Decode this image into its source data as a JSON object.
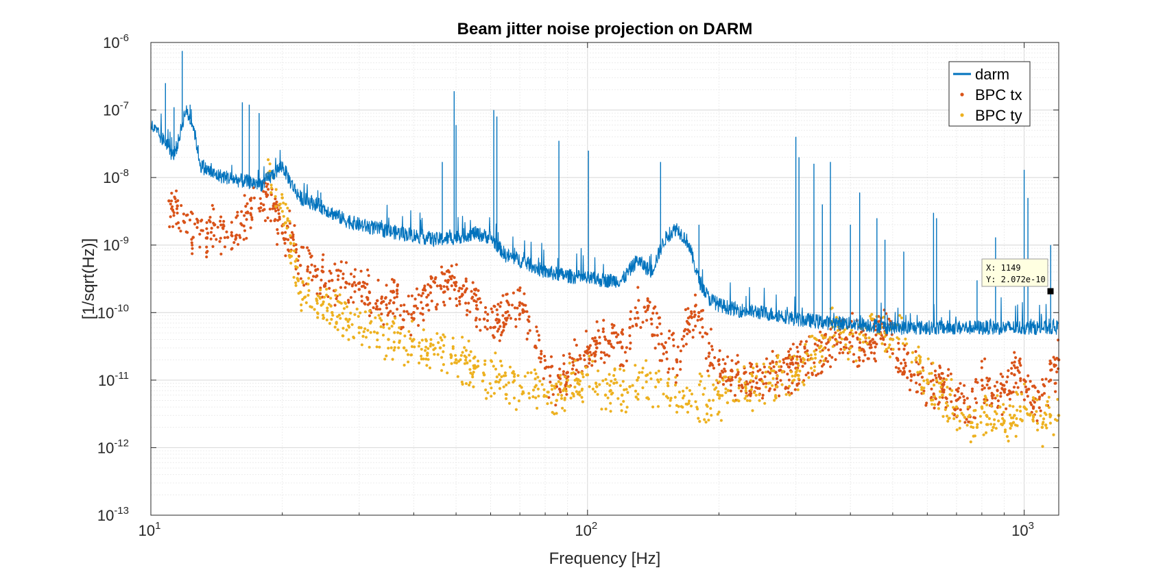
{
  "chart_data": {
    "type": "scatter",
    "title": "Beam jitter noise projection on DARM",
    "xlabel": "Frequency [Hz]",
    "ylabel": "[1/sqrt(Hz)]",
    "xscale": "log",
    "yscale": "log",
    "xlim": [
      10,
      1200
    ],
    "ylim": [
      1e-13,
      1e-06
    ],
    "grid": "on",
    "legend_position": "top-right",
    "x_ticks": [
      {
        "value": 10,
        "mantissa": "10",
        "exp": "1"
      },
      {
        "value": 100,
        "mantissa": "10",
        "exp": "2"
      },
      {
        "value": 1000,
        "mantissa": "10",
        "exp": "3"
      }
    ],
    "y_ticks": [
      {
        "value": 1e-13,
        "mantissa": "10",
        "exp": "-13"
      },
      {
        "value": 1e-12,
        "mantissa": "10",
        "exp": "-12"
      },
      {
        "value": 1e-11,
        "mantissa": "10",
        "exp": "-11"
      },
      {
        "value": 1e-10,
        "mantissa": "10",
        "exp": "-10"
      },
      {
        "value": 1e-09,
        "mantissa": "10",
        "exp": "-9"
      },
      {
        "value": 1e-08,
        "mantissa": "10",
        "exp": "-8"
      },
      {
        "value": 1e-07,
        "mantissa": "10",
        "exp": "-7"
      },
      {
        "value": 1e-06,
        "mantissa": "10",
        "exp": "-6"
      }
    ],
    "series": [
      {
        "name": "darm",
        "style": "line",
        "color": "#0072BD",
        "x": [
          10,
          10.5,
          11,
          11.2,
          11.5,
          12,
          12.5,
          13,
          14,
          15,
          16,
          18,
          20,
          21,
          22,
          24,
          26,
          28,
          30,
          35,
          40,
          45,
          50,
          55,
          60,
          65,
          70,
          80,
          90,
          100,
          110,
          120,
          130,
          140,
          150,
          155,
          160,
          170,
          180,
          190,
          200,
          220,
          250,
          280,
          300,
          330,
          360,
          400,
          450,
          500,
          600,
          700,
          800,
          900,
          1000,
          1100,
          1200
        ],
        "y": [
          6e-08,
          4e-08,
          3e-08,
          2e-08,
          3e-08,
          1e-07,
          6e-08,
          1.5e-08,
          1.1e-08,
          1e-08,
          9e-09,
          8e-09,
          1.5e-08,
          8e-09,
          5e-09,
          4e-09,
          3e-09,
          2.3e-09,
          2e-09,
          1.6e-09,
          1.4e-09,
          1.2e-09,
          1.3e-09,
          1.5e-09,
          1.3e-09,
          7e-10,
          6e-10,
          4e-10,
          3.5e-10,
          3.2e-10,
          3e-10,
          3e-10,
          6e-10,
          4e-10,
          1.2e-09,
          1.5e-09,
          1.8e-09,
          1.1e-09,
          3e-10,
          1.6e-10,
          1.3e-10,
          1.1e-10,
          1e-10,
          9e-11,
          8e-11,
          7.5e-11,
          7e-11,
          7e-11,
          6.5e-11,
          6e-11,
          6e-11,
          6e-11,
          6e-11,
          6e-11,
          6e-11,
          6e-11,
          6e-11
        ],
        "peaks": [
          {
            "x": 10.8,
            "y": 2.5e-07
          },
          {
            "x": 11.3,
            "y": 1.1e-07
          },
          {
            "x": 11.8,
            "y": 7.5e-07
          },
          {
            "x": 12.3,
            "y": 1.2e-07
          },
          {
            "x": 16.2,
            "y": 1.3e-07
          },
          {
            "x": 16.8,
            "y": 1.2e-07
          },
          {
            "x": 17.7,
            "y": 9e-08
          },
          {
            "x": 19.8,
            "y": 1.8e-08
          },
          {
            "x": 24.5,
            "y": 6e-09
          },
          {
            "x": 46.5,
            "y": 1.7e-08
          },
          {
            "x": 49.5,
            "y": 1.9e-07
          },
          {
            "x": 50,
            "y": 6e-08
          },
          {
            "x": 61,
            "y": 1e-07
          },
          {
            "x": 62,
            "y": 8e-08
          },
          {
            "x": 86,
            "y": 3.5e-08
          },
          {
            "x": 100.5,
            "y": 2.5e-08
          },
          {
            "x": 147,
            "y": 1.7e-08
          },
          {
            "x": 180,
            "y": 2e-09
          },
          {
            "x": 300,
            "y": 4e-08
          },
          {
            "x": 305,
            "y": 2e-08
          },
          {
            "x": 330,
            "y": 1.6e-08
          },
          {
            "x": 345,
            "y": 4e-09
          },
          {
            "x": 360,
            "y": 1.7e-08
          },
          {
            "x": 400,
            "y": 2e-09
          },
          {
            "x": 420,
            "y": 6e-09
          },
          {
            "x": 460,
            "y": 2.5e-09
          },
          {
            "x": 480,
            "y": 1.2e-09
          },
          {
            "x": 530,
            "y": 8e-10
          },
          {
            "x": 620,
            "y": 3e-09
          },
          {
            "x": 630,
            "y": 2.5e-09
          },
          {
            "x": 780,
            "y": 3e-10
          },
          {
            "x": 860,
            "y": 1.3e-09
          },
          {
            "x": 1000,
            "y": 1.3e-08
          },
          {
            "x": 1020,
            "y": 5e-09
          },
          {
            "x": 1150,
            "y": 1e-09
          }
        ]
      },
      {
        "name": "BPC tx",
        "style": "markers",
        "color": "#D95319",
        "x": [
          11,
          11.5,
          12.5,
          13.5,
          14,
          15,
          17,
          18.5,
          20,
          21,
          22,
          24,
          26,
          28,
          30,
          33,
          36,
          40,
          43,
          46,
          48,
          50,
          52,
          55,
          58,
          60,
          65,
          70,
          80,
          85,
          90,
          95,
          100,
          105,
          110,
          115,
          120,
          125,
          130,
          135,
          140,
          150,
          160,
          170,
          180,
          190,
          200,
          210,
          220,
          230,
          250,
          270,
          300,
          320,
          350,
          370,
          400,
          420,
          450,
          480,
          500,
          530,
          560,
          600,
          650,
          700,
          750,
          800,
          850,
          900,
          950,
          1000,
          1050,
          1100,
          1150,
          1200
        ],
        "y": [
          4.5e-09,
          3.8e-09,
          1.3e-09,
          1.5e-09,
          2e-09,
          1.3e-09,
          3.5e-09,
          5.5e-09,
          1.5e-09,
          1.3e-09,
          5e-10,
          3.5e-10,
          3e-10,
          2.8e-10,
          2.2e-10,
          1.5e-10,
          1.4e-10,
          1e-10,
          1.3e-10,
          2.5e-10,
          3e-10,
          2.8e-10,
          2.5e-10,
          1.5e-10,
          8e-11,
          6e-11,
          1e-10,
          1.4e-10,
          1.5e-11,
          8e-12,
          1.3e-11,
          2e-11,
          2.5e-11,
          3e-11,
          4e-11,
          5e-11,
          3e-11,
          6e-11,
          1e-10,
          1.2e-10,
          8e-11,
          3e-11,
          2e-11,
          7e-11,
          1e-10,
          2.5e-11,
          2e-11,
          1e-11,
          1.2e-11,
          9e-12,
          1e-11,
          1.3e-11,
          1.5e-11,
          2e-11,
          3e-11,
          4e-11,
          5e-11,
          3e-11,
          4e-11,
          6e-11,
          4e-11,
          1.5e-11,
          1.2e-11,
          1e-11,
          8e-12,
          5e-12,
          4e-12,
          1e-11,
          6e-12,
          7e-12,
          1.2e-11,
          1e-11,
          4e-12,
          6e-12,
          1e-11,
          2e-11
        ]
      },
      {
        "name": "BPC ty",
        "style": "markers",
        "color": "#EDB120",
        "x": [
          18.5,
          20,
          22,
          24,
          26,
          28,
          30,
          33,
          35,
          38,
          40,
          43,
          46,
          50,
          53,
          55,
          58,
          85,
          88,
          90,
          95,
          100,
          105,
          110,
          113,
          115,
          120,
          125,
          130,
          190,
          200,
          210,
          230,
          260,
          300,
          340,
          370,
          380,
          400,
          420,
          450,
          480,
          500,
          520,
          600,
          650,
          700,
          750,
          780,
          800,
          820,
          850,
          880,
          900,
          950,
          1000,
          1050,
          1100,
          1150,
          1200
        ],
        "y": [
          1e-08,
          5e-09,
          2e-10,
          1.5e-10,
          1e-10,
          8e-11,
          6e-11,
          5e-11,
          4e-11,
          3e-11,
          4e-11,
          2.5e-11,
          3e-11,
          2e-11,
          1.8e-11,
          1.5e-11,
          1.2e-11,
          5e-12,
          7e-12,
          1e-11,
          9e-12,
          1.2e-11,
          8e-12,
          6e-12,
          7e-12,
          9e-12,
          6e-12,
          8e-12,
          1e-11,
          5e-12,
          6e-12,
          7e-12,
          8e-12,
          9e-12,
          1.2e-11,
          3e-11,
          7e-11,
          5e-11,
          3e-11,
          4e-11,
          8e-11,
          5e-11,
          4e-11,
          6e-11,
          1e-11,
          6e-12,
          4e-12,
          3e-12,
          2e-12,
          4e-12,
          3e-12,
          2e-12,
          4e-12,
          2.5e-12,
          3e-12,
          4e-12,
          3e-12,
          2e-12,
          3e-12,
          3e-12
        ]
      }
    ],
    "datatip": {
      "x": 1149,
      "y": 2.072e-10,
      "x_text": "X: 1149",
      "y_text": "Y: 2.072e-10"
    }
  }
}
